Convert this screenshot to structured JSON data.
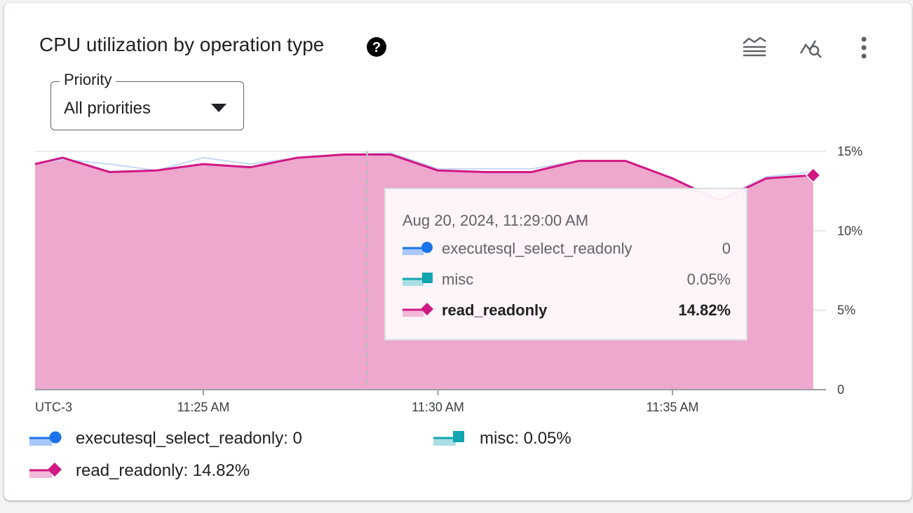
{
  "card": {
    "title": "CPU utilization by operation type",
    "help_icon": "help-circle-icon",
    "toolbar": {
      "compare_icon": "chart-style-icon",
      "explore_icon": "explore-chart-icon",
      "more_icon": "more-vert-icon"
    }
  },
  "filter": {
    "label": "Priority",
    "value": "All priorities",
    "arrow_icon": "arrow-drop-down-icon"
  },
  "chart_data": {
    "type": "area",
    "timezone_label": "UTC-3",
    "x_ticks": [
      "11:25 AM",
      "11:30 AM",
      "11:35 AM"
    ],
    "y_ticks": [
      "0",
      "5%",
      "10%",
      "15%"
    ],
    "ylim": [
      0,
      15
    ],
    "y_axis_side": "right",
    "grid": true,
    "legend_position": "bottom",
    "x": [
      "11:21:25",
      "11:22:00",
      "11:23:00",
      "11:24:00",
      "11:25:00",
      "11:26:00",
      "11:27:00",
      "11:28:00",
      "11:29:00",
      "11:30:00",
      "11:31:00",
      "11:32:00",
      "11:33:00",
      "11:34:00",
      "11:35:00",
      "11:36:00",
      "11:37:00",
      "11:38:00"
    ],
    "series": [
      {
        "name": "executesql_select_readonly",
        "color": "#1a73e8",
        "marker": "circle",
        "values": [
          0,
          0,
          0,
          0,
          0,
          0,
          0,
          0,
          0,
          0,
          0,
          0,
          0,
          0,
          0,
          0,
          0,
          0
        ]
      },
      {
        "name": "misc",
        "color": "#12a4af",
        "marker": "square",
        "values": [
          0.05,
          0.05,
          0.05,
          0.05,
          0.05,
          0.05,
          0.05,
          0.05,
          0.05,
          0.05,
          0.05,
          0.05,
          0.05,
          0.05,
          0.05,
          0.05,
          0.05,
          0.05
        ]
      },
      {
        "name": "read_readonly",
        "color": "#d01884",
        "marker": "diamond",
        "values": [
          14.2,
          14.6,
          13.7,
          13.8,
          14.2,
          14.0,
          14.6,
          14.8,
          14.8,
          13.8,
          13.7,
          13.7,
          14.4,
          14.4,
          13.3,
          11.9,
          13.3,
          13.5
        ]
      }
    ],
    "upper_band": [
      14.2,
      14.5,
      14.2,
      13.8,
      14.6,
      14.2,
      14.6,
      14.8,
      14.9,
      13.9,
      13.9,
      13.9,
      14.4,
      14.4,
      13.3,
      12.0,
      13.4,
      13.7
    ],
    "hover_x_index": 8
  },
  "tooltip": {
    "date": "Aug 20, 2024, 11:29:00 AM",
    "rows": [
      {
        "name": "executesql_select_readonly",
        "value": "0"
      },
      {
        "name": "misc",
        "value": "0.05%"
      },
      {
        "name": "read_readonly",
        "value": "14.82%"
      }
    ]
  },
  "legend": {
    "items": [
      {
        "name": "executesql_select_readonly:",
        "value": "0"
      },
      {
        "name": "misc:",
        "value": "0.05%"
      },
      {
        "name": "read_readonly:",
        "value": "14.82%"
      }
    ]
  },
  "colors": {
    "executesql": "#1a73e8",
    "misc": "#12a4af",
    "read": "#d01884",
    "read_fill": "#eea7cd"
  }
}
